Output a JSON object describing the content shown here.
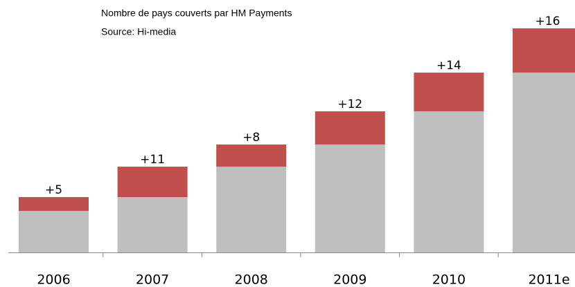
{
  "chart_data": {
    "type": "stacked_bar",
    "title": "Nombre de pays couverts par HM Payments",
    "subtitle": "Source: Hi-media",
    "categories": [
      "2006",
      "2007",
      "2008",
      "2009",
      "2010",
      "2011e"
    ],
    "series": [
      {
        "color": "#bfbfbf",
        "values": [
          15,
          20,
          31,
          39,
          51,
          65
        ]
      },
      {
        "color": "#c0504d",
        "values": [
          5,
          11,
          8,
          12,
          14,
          16
        ],
        "value_labels": [
          "+5",
          "+11",
          "+8",
          "+12",
          "+14",
          "+16"
        ]
      }
    ]
  }
}
